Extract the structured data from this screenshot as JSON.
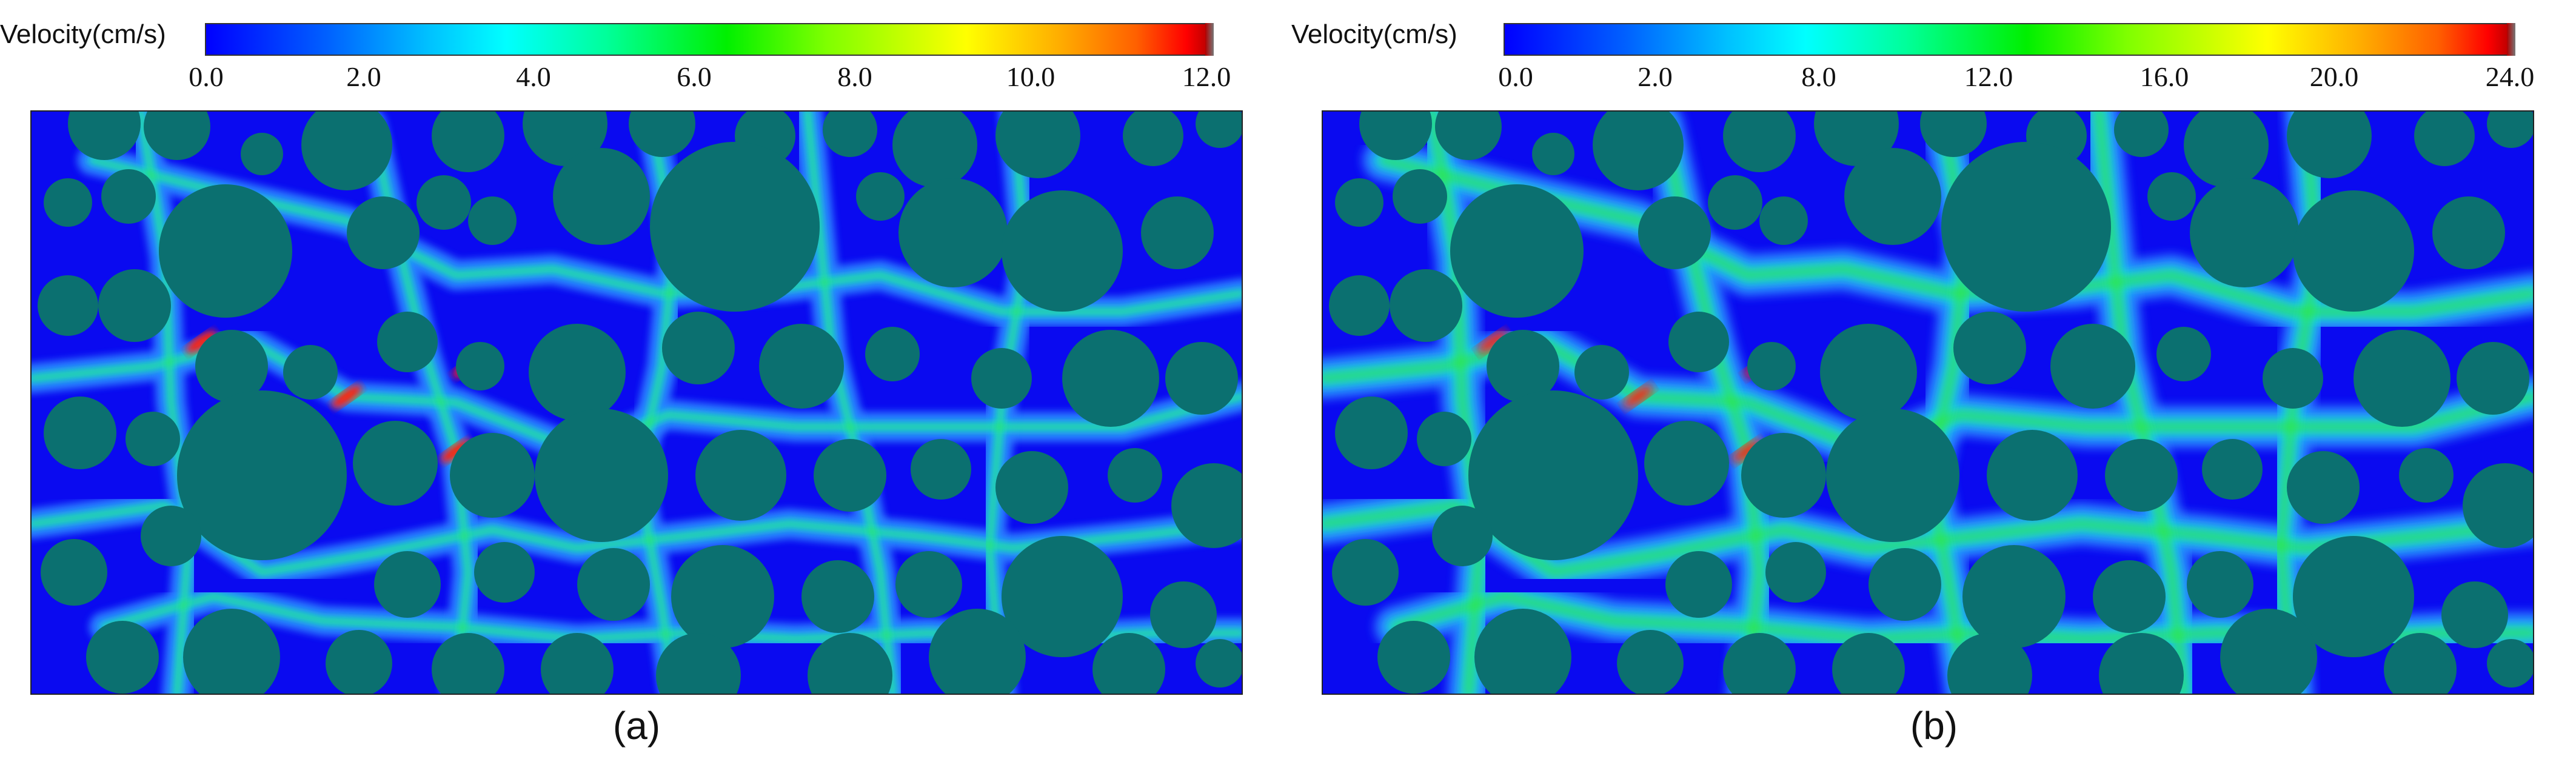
{
  "panels": [
    {
      "id": "a",
      "label": "(a)",
      "colorbar": {
        "title": "Velocity(cm/s)",
        "ticks": [
          "0.0",
          "2.0",
          "4.0",
          "6.0",
          "8.0",
          "10.0",
          "12.0"
        ]
      }
    },
    {
      "id": "b",
      "label": "(b)",
      "colorbar": {
        "title": "Velocity(cm/s)",
        "ticks": [
          "0.0",
          "2.0",
          "8.0",
          "12.0",
          "16.0",
          "20.0",
          "24.0"
        ]
      }
    }
  ],
  "colors": {
    "background_flow": "#0a0af0",
    "grains": "#0b7070",
    "low_channel": "#2a7cff",
    "mid_channel": "#18d8f0",
    "high_channel": "#30e830",
    "peak": "#ff2010"
  }
}
